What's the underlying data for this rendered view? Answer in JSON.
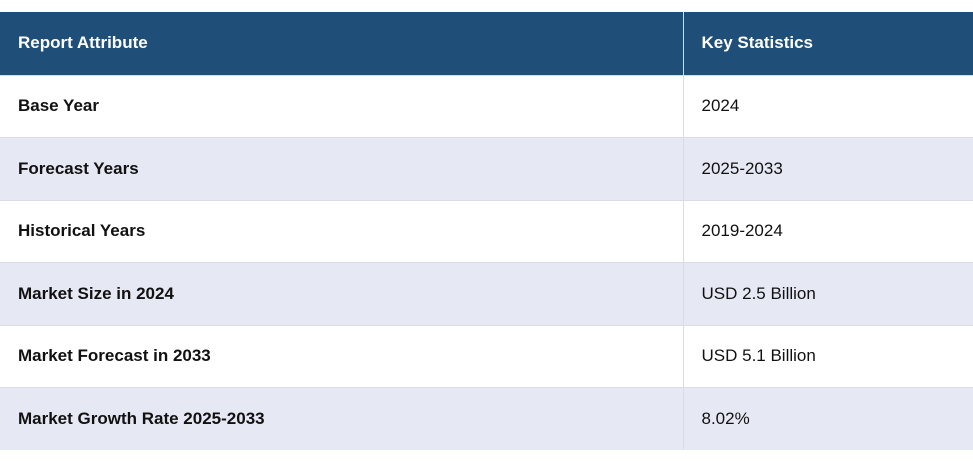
{
  "table": {
    "headers": {
      "attribute": "Report Attribute",
      "statistics": "Key Statistics"
    },
    "rows": [
      {
        "attribute": "Base Year",
        "value": "2024"
      },
      {
        "attribute": "Forecast Years",
        "value": "2025-2033"
      },
      {
        "attribute": "Historical Years",
        "value": "2019-2024"
      },
      {
        "attribute": "Market Size in 2024",
        "value": "USD 2.5 Billion"
      },
      {
        "attribute": "Market Forecast in 2033",
        "value": "USD 5.1 Billion"
      },
      {
        "attribute": "Market Growth Rate 2025-2033",
        "value": "8.02%"
      }
    ],
    "colors": {
      "header_bg": "#1f4e79",
      "row_alt_bg": "#e6e8f4"
    }
  }
}
